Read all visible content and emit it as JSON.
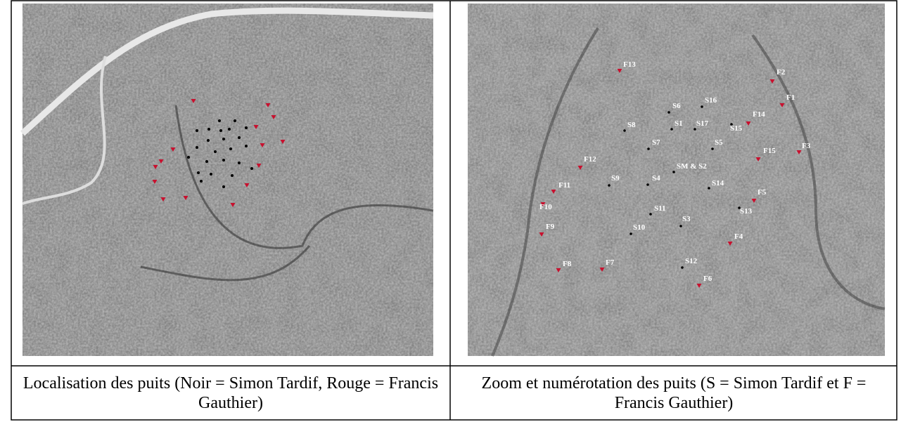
{
  "cells": [
    {
      "caption": "Localisation des puits (Noir = Simon Tardif, Rouge = Francis Gauthier)"
    },
    {
      "caption": "Zoom et numérotation des puits (S = Simon Tardif et F = Francis Gauthier)",
      "wells": [
        "F13",
        "F2",
        "F1",
        "S6",
        "S16",
        "F14",
        "S15",
        "S8",
        "S1",
        "S17",
        "S7",
        "S5",
        "F15",
        "F3",
        "F12",
        "SM & S2",
        "S9",
        "S4",
        "S14",
        "F11",
        "F5",
        "F10",
        "S13",
        "F9",
        "S11",
        "S3",
        "S10",
        "F4",
        "F8",
        "F7",
        "S12",
        "F6"
      ]
    }
  ]
}
